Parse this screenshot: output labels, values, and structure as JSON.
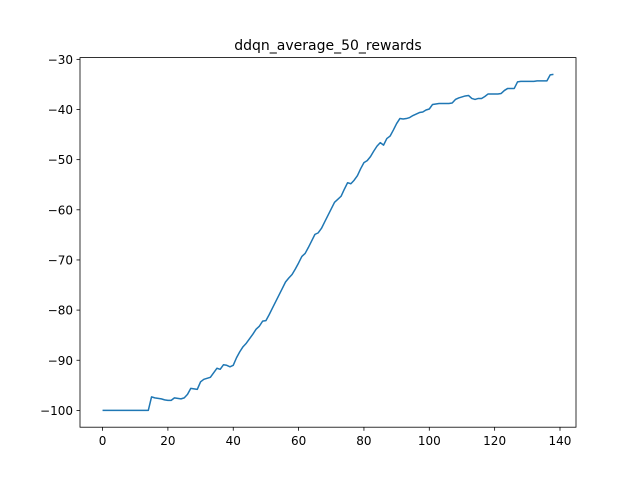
{
  "chart_data": {
    "type": "line",
    "title": "ddqn_average_50_rewards",
    "xlim": [
      -6.9,
      144.9
    ],
    "xticks": [
      0,
      20,
      40,
      60,
      80,
      100,
      120,
      140
    ],
    "ylim": [
      -103.35,
      -29.65
    ],
    "yticks": [
      {
        "value": -100,
        "label": "−100"
      },
      {
        "value": -90,
        "label": "−90"
      },
      {
        "value": -80,
        "label": "−80"
      },
      {
        "value": -70,
        "label": "−70"
      },
      {
        "value": -60,
        "label": "−60"
      },
      {
        "value": -50,
        "label": "−50"
      },
      {
        "value": -40,
        "label": "−40"
      },
      {
        "value": -30,
        "label": "−30"
      }
    ],
    "series": [
      {
        "color": "#1f77b4",
        "values": [
          -100,
          -100,
          -100,
          -100,
          -100,
          -100,
          -100,
          -100,
          -100,
          -100,
          -100,
          -100,
          -100,
          -100,
          -100,
          -97.3,
          -97.5,
          -97.6,
          -97.7,
          -97.9,
          -98.0,
          -98.0,
          -97.5,
          -97.6,
          -97.7,
          -97.5,
          -96.8,
          -95.6,
          -95.7,
          -95.8,
          -94.3,
          -93.8,
          -93.6,
          -93.4,
          -92.5,
          -91.6,
          -91.8,
          -90.9,
          -91.0,
          -91.3,
          -91.0,
          -89.5,
          -88.3,
          -87.3,
          -86.6,
          -85.7,
          -84.8,
          -83.8,
          -83.2,
          -82.2,
          -82.1,
          -80.9,
          -79.6,
          -78.3,
          -77.0,
          -75.7,
          -74.4,
          -73.6,
          -72.9,
          -71.8,
          -70.6,
          -69.3,
          -68.7,
          -67.5,
          -66.2,
          -64.9,
          -64.6,
          -63.7,
          -62.4,
          -61.1,
          -59.8,
          -58.5,
          -57.9,
          -57.3,
          -55.9,
          -54.6,
          -54.8,
          -54.1,
          -53.2,
          -51.8,
          -50.6,
          -50.2,
          -49.4,
          -48.3,
          -47.3,
          -46.6,
          -47.1,
          -45.8,
          -45.3,
          -44.1,
          -42.8,
          -41.8,
          -41.9,
          -41.8,
          -41.6,
          -41.2,
          -40.9,
          -40.6,
          -40.5,
          -40.1,
          -39.9,
          -39.0,
          -38.9,
          -38.8,
          -38.8,
          -38.8,
          -38.8,
          -38.7,
          -38.0,
          -37.7,
          -37.5,
          -37.3,
          -37.2,
          -37.8,
          -38.0,
          -37.8,
          -37.8,
          -37.4,
          -36.9,
          -36.9,
          -36.9,
          -36.9,
          -36.8,
          -36.2,
          -35.8,
          -35.8,
          -35.8,
          -34.5,
          -34.4,
          -34.4,
          -34.4,
          -34.4,
          -34.4,
          -34.3,
          -34.3,
          -34.3,
          -34.3,
          -33.1,
          -33.0
        ]
      }
    ]
  }
}
